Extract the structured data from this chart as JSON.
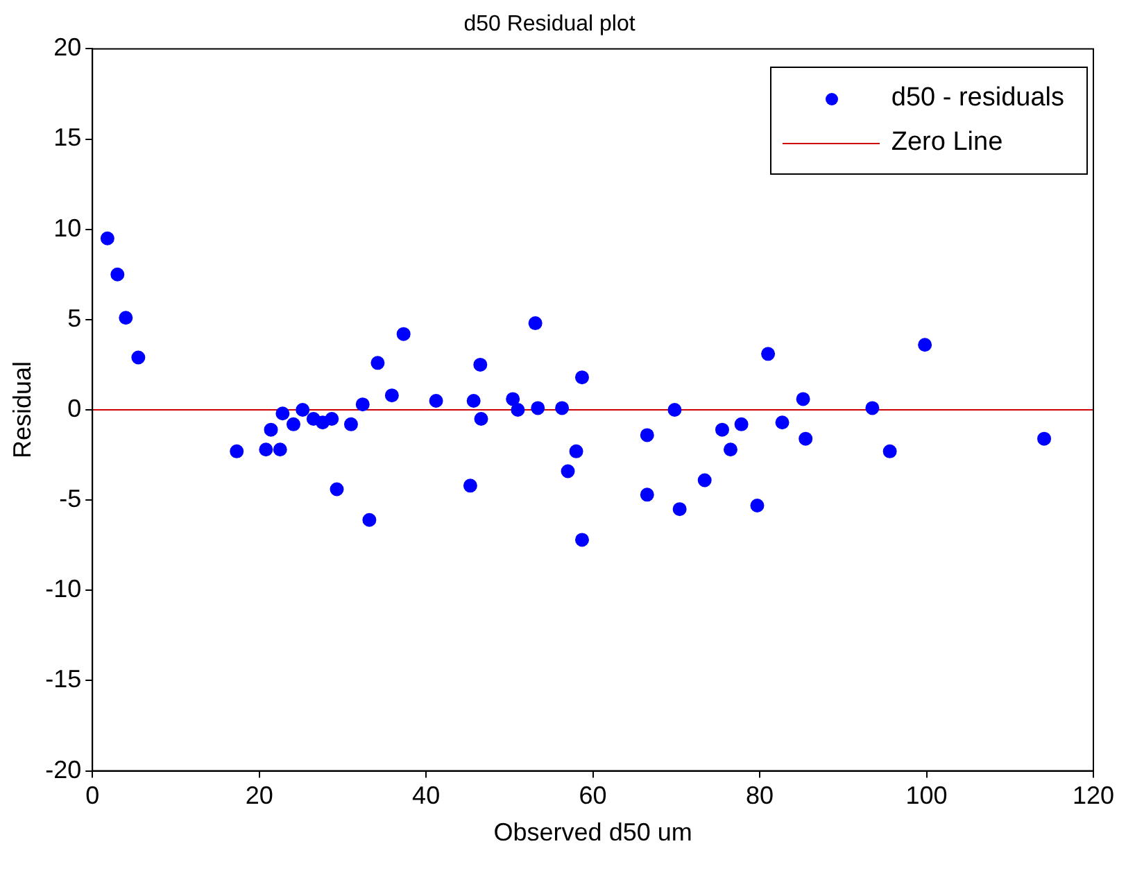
{
  "chart_data": {
    "type": "scatter",
    "title": "d50 Residual plot",
    "xlabel": "Observed d50 um",
    "ylabel": "Residual",
    "xlim": [
      0,
      120
    ],
    "xticks": [
      0,
      20,
      40,
      60,
      80,
      100,
      120
    ],
    "ylim": [
      -20,
      20
    ],
    "yticks": [
      -20,
      -15,
      -10,
      -5,
      0,
      5,
      10,
      15,
      20
    ],
    "grid": false,
    "legend": "top right",
    "series": [
      {
        "name": "d50 - residuals",
        "marker": "circle",
        "color": "#0000ff",
        "x": [
          1.8,
          3,
          4,
          5.5,
          17.3,
          20.8,
          21.4,
          22.5,
          22.8,
          24.1,
          25.2,
          26.5,
          27.6,
          28.7,
          29.3,
          31,
          32.4,
          33.2,
          34.2,
          35.9,
          37.3,
          41.2,
          45.3,
          45.7,
          46.5,
          46.6,
          50.4,
          51,
          53.1,
          53.4,
          56.3,
          57,
          58,
          58.7,
          58.7,
          66.5,
          66.5,
          69.8,
          70.4,
          73.4,
          75.5,
          76.5,
          77.8,
          79.7,
          81,
          82.7,
          85.2,
          85.5,
          93.5,
          95.6,
          99.8,
          114.1
        ],
        "values": [
          9.5,
          7.5,
          5.1,
          2.9,
          -2.3,
          -2.2,
          -1.1,
          -2.2,
          -0.2,
          -0.8,
          0,
          -0.5,
          -0.7,
          -0.5,
          -4.4,
          -0.8,
          0.3,
          -6.1,
          2.6,
          0.8,
          4.2,
          0.5,
          -4.2,
          0.5,
          2.5,
          -0.5,
          0.6,
          0,
          4.8,
          0.1,
          0.1,
          -3.4,
          -2.3,
          -7.2,
          1.8,
          -1.4,
          -4.7,
          0,
          -5.5,
          -3.9,
          -1.1,
          -2.2,
          -0.8,
          -5.3,
          3.1,
          -0.7,
          0.6,
          -1.6,
          0.1,
          -2.3,
          3.6,
          -1.6
        ]
      },
      {
        "name": "Zero Line",
        "type": "line",
        "marker": "none",
        "color": "#cc0000",
        "x": [
          0,
          120
        ],
        "values": [
          0,
          0
        ]
      }
    ]
  }
}
